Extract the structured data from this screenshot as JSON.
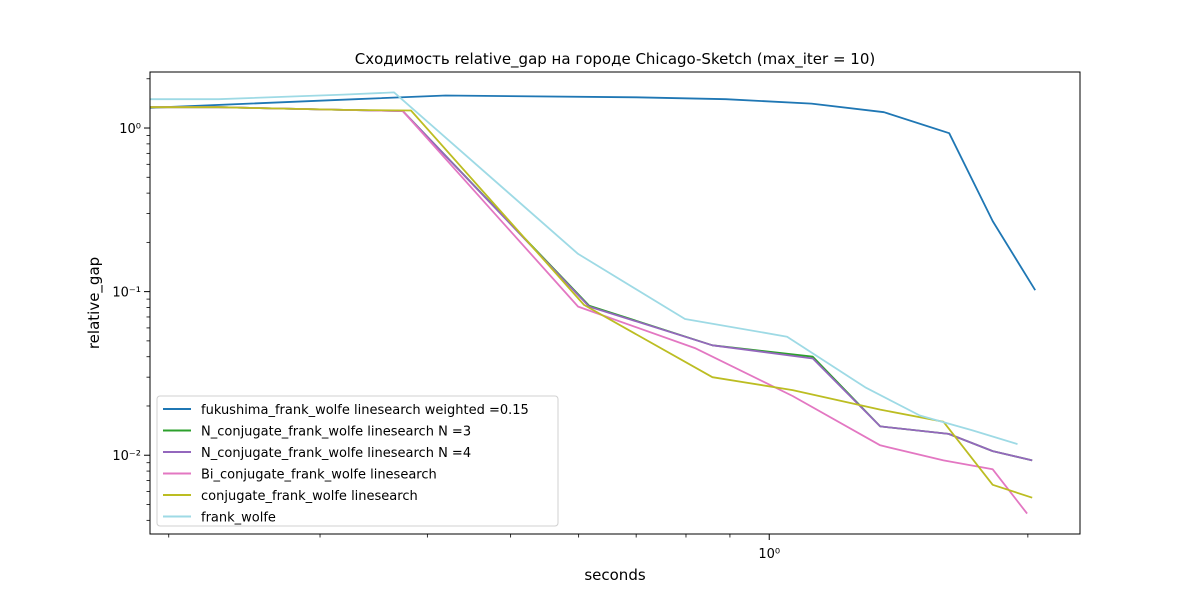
{
  "chart_data": {
    "type": "line",
    "title": "Сходимость relative_gap на городе Chicago-Sketch  (max_iter = 10)",
    "xlabel": "seconds",
    "ylabel": "relative_gap",
    "xscale": "log",
    "yscale": "log",
    "xlim": [
      0.1902,
      2.3
    ],
    "ylim": [
      0.0033,
      2.2
    ],
    "x_ticks": [
      {
        "value": 1,
        "label": "10⁰"
      }
    ],
    "y_ticks": [
      {
        "value": 1,
        "label": "10⁰"
      },
      {
        "value": 0.1,
        "label": "10⁻¹"
      },
      {
        "value": 0.01,
        "label": "10⁻²"
      }
    ],
    "grid": false,
    "legend_position": "lower-left",
    "series": [
      {
        "name": "fukushima_frank_wolfe linesearch weighted =0.15",
        "color": "#1f77b4",
        "x": [
          0.19,
          0.33,
          0.42,
          0.7,
          0.89,
          1.12,
          1.36,
          1.62,
          1.82,
          2.04
        ],
        "y": [
          1.33,
          1.5,
          1.58,
          1.54,
          1.5,
          1.41,
          1.25,
          0.93,
          0.27,
          0.102
        ]
      },
      {
        "name": "N_conjugate_frank_wolfe linesearch N =3",
        "color": "#2ca02c",
        "x": [
          0.19,
          0.2286,
          0.3195,
          0.3744,
          0.6172,
          0.8587,
          1.1237,
          1.3462,
          1.6174,
          1.8202,
          2.0233
        ],
        "y": [
          1.34,
          1.34,
          1.29,
          1.27,
          0.082,
          0.047,
          0.04,
          0.015,
          0.0135,
          0.0106,
          0.0093
        ]
      },
      {
        "name": "N_conjugate_frank_wolfe linesearch N =4",
        "color": "#9467bd",
        "x": [
          0.19,
          0.2286,
          0.3195,
          0.3744,
          0.6172,
          0.8587,
          1.1237,
          1.3462,
          1.6174,
          1.8202,
          2.0233
        ],
        "y": [
          1.34,
          1.34,
          1.29,
          1.27,
          0.081,
          0.047,
          0.039,
          0.015,
          0.0135,
          0.0106,
          0.0093
        ]
      },
      {
        "name": "Bi_conjugate_frank_wolfe linesearch",
        "color": "#e377c2",
        "x": [
          0.19,
          0.2286,
          0.3195,
          0.3744,
          0.5992,
          0.8212,
          1.0645,
          1.3462,
          1.5954,
          1.8202,
          1.9959
        ],
        "y": [
          1.34,
          1.34,
          1.29,
          1.27,
          0.081,
          0.045,
          0.023,
          0.0115,
          0.0093,
          0.0082,
          0.0044
        ]
      },
      {
        "name": "conjugate_frank_wolfe linesearch",
        "color": "#bcbd22",
        "x": [
          0.19,
          0.2286,
          0.3195,
          0.3828,
          0.6086,
          0.8587,
          1.0645,
          1.3462,
          1.5954,
          1.8202,
          2.0233
        ],
        "y": [
          1.34,
          1.34,
          1.29,
          1.28,
          0.083,
          0.03,
          0.025,
          0.019,
          0.016,
          0.0066,
          0.0055
        ]
      },
      {
        "name": "frank_wolfe",
        "color": "#9edae5",
        "x": [
          0.19,
          0.2286,
          0.3195,
          0.3659,
          0.5992,
          0.7978,
          1.0491,
          1.2932,
          1.4973,
          1.7226,
          1.9455
        ],
        "y": [
          1.5,
          1.5,
          1.6,
          1.65,
          0.17,
          0.068,
          0.053,
          0.026,
          0.0175,
          0.0142,
          0.0117
        ]
      }
    ]
  }
}
